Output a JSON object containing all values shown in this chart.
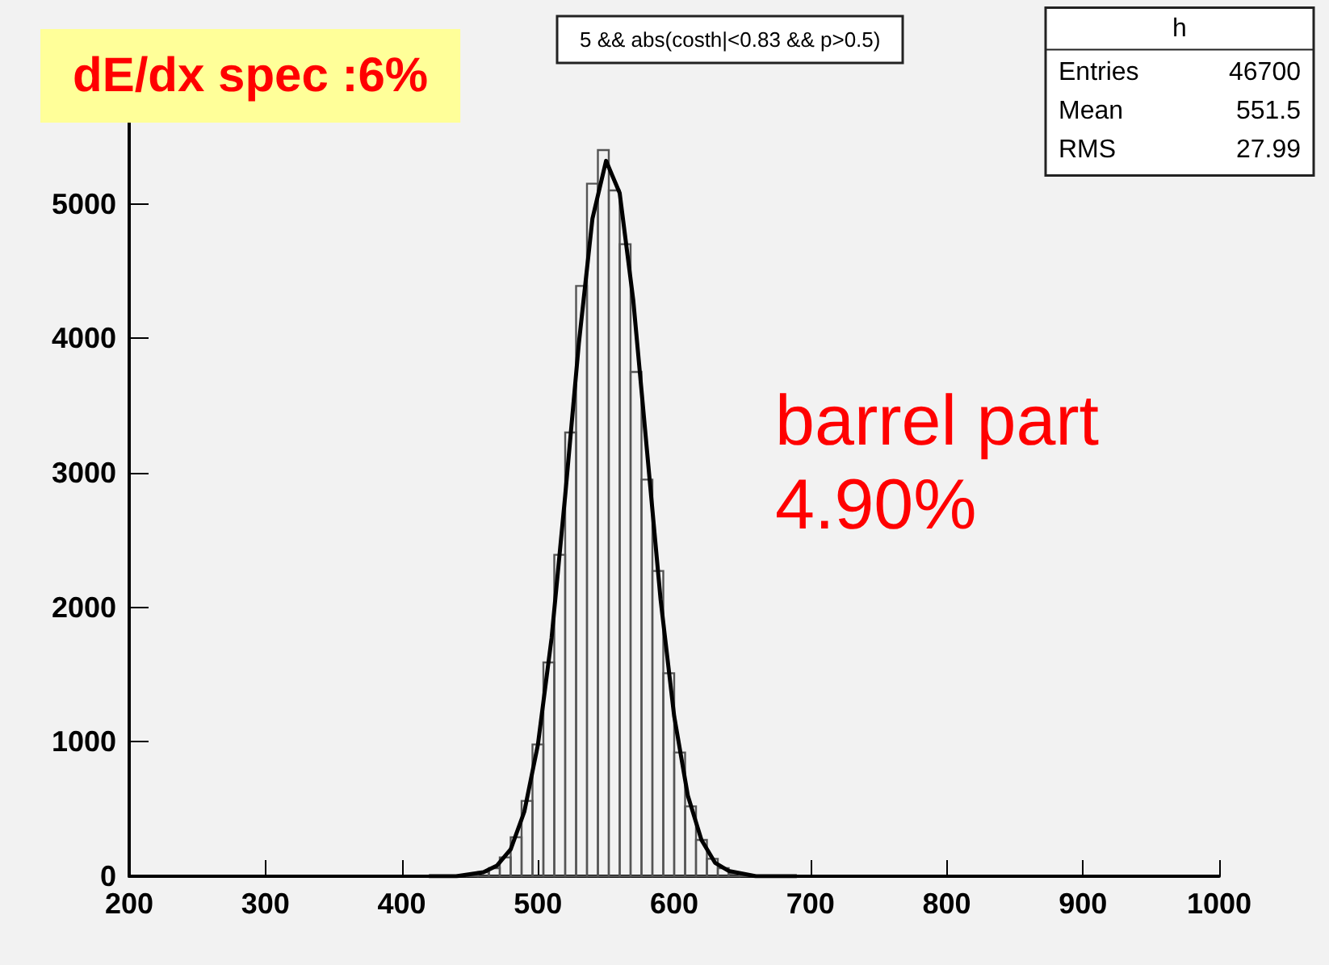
{
  "chart_data": {
    "type": "histogram",
    "title": "dE/dx spec :6%",
    "subtitle": "5 && abs(costh|<0.83 && p>0.5)",
    "bins": [
      440,
      448,
      456,
      464,
      472,
      480,
      488,
      496,
      504,
      512,
      520,
      528,
      536,
      544,
      552,
      560,
      568,
      576,
      584,
      592,
      600,
      608,
      616,
      624,
      632,
      640,
      648,
      656,
      664
    ],
    "values": [
      0,
      10,
      30,
      60,
      140,
      290,
      560,
      980,
      1590,
      2390,
      3300,
      4390,
      5150,
      5400,
      5100,
      4700,
      3750,
      2950,
      2270,
      1510,
      920,
      520,
      270,
      130,
      60,
      20,
      10,
      0
    ],
    "color": "#555555",
    "series": [
      {
        "type": "line",
        "color": "#000000",
        "x": [
          420,
          440,
          460,
          470,
          480,
          490,
          500,
          510,
          520,
          530,
          540,
          550,
          560,
          570,
          580,
          590,
          600,
          610,
          620,
          630,
          640,
          660,
          690
        ],
        "values": [
          0,
          0,
          30,
          80,
          200,
          480,
          980,
          1770,
          2830,
          3960,
          4890,
          5320,
          5080,
          4280,
          3170,
          2060,
          1190,
          600,
          270,
          100,
          40,
          0,
          0
        ]
      }
    ],
    "xlim": [
      200,
      1000
    ],
    "xticks": [
      200,
      300,
      400,
      500,
      600,
      700,
      800,
      900,
      1000
    ],
    "ylim": [
      0,
      5700
    ],
    "yticks": [
      0,
      1000,
      2000,
      3000,
      4000,
      5000
    ],
    "grid": false,
    "marker": "none",
    "line_style": "solid",
    "annotations": [
      "barrel part\n4.90%",
      "h",
      "Entries 46700",
      "Mean 551.5",
      "RMS 27.99"
    ]
  }
}
